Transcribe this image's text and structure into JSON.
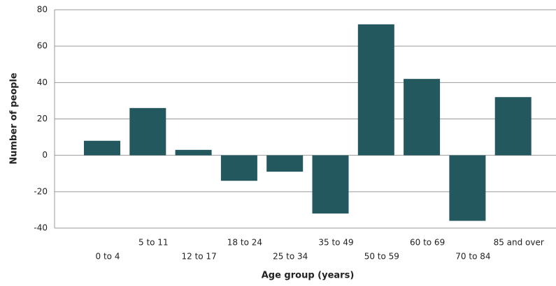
{
  "chart_data": {
    "type": "bar",
    "x_label": "Age group (years)",
    "y_label": "Number of people",
    "categories": [
      "0 to 4",
      "5 to 11",
      "12 to 17",
      "18 to 24",
      "25 to 34",
      "35 to 49",
      "50 to 59",
      "60 to 69",
      "70 to 84",
      "85 and over"
    ],
    "values": [
      8,
      26,
      3,
      -14,
      -9,
      -32,
      72,
      42,
      -36,
      32
    ],
    "color": "#23585f",
    "ylim": [
      -40,
      80
    ],
    "yticks": [
      -40,
      -20,
      0,
      20,
      40,
      60,
      80
    ],
    "grid": true
  }
}
